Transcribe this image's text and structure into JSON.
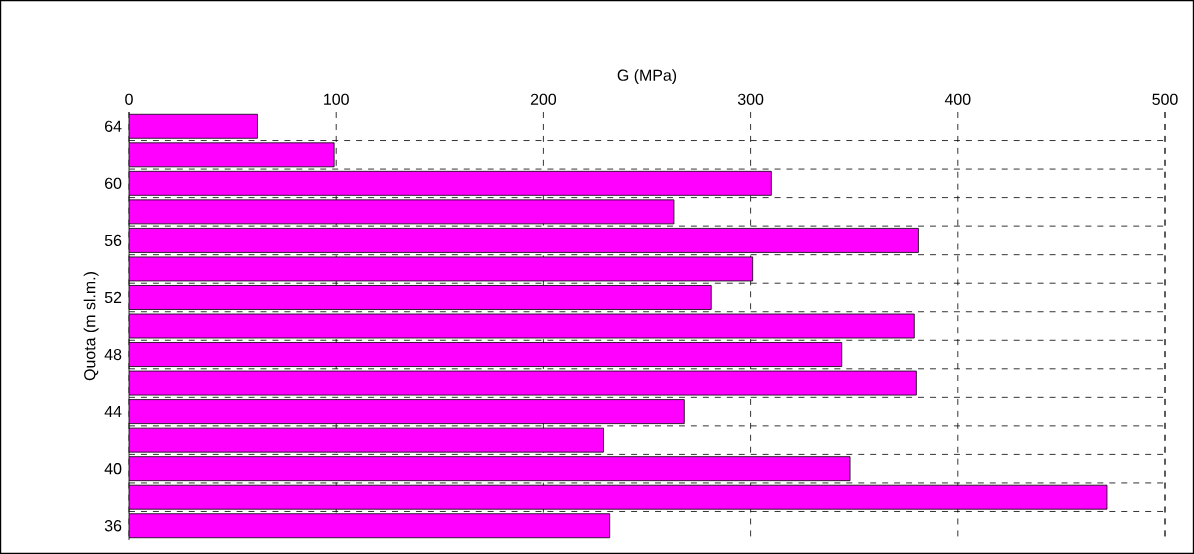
{
  "chart_data": {
    "type": "bar",
    "orientation": "horizontal",
    "xlabel": "G (MPa)",
    "ylabel": "Quota (m sl.m.)",
    "categories": [
      "64",
      null,
      "60",
      null,
      "56",
      null,
      "52",
      null,
      "48",
      null,
      "44",
      null,
      "40",
      null,
      "36"
    ],
    "values": [
      62,
      99,
      310,
      263,
      381,
      301,
      281,
      379,
      344,
      380,
      268,
      229,
      348,
      472,
      232
    ],
    "color": "#ff00ff",
    "xlim": [
      0,
      500
    ],
    "xticks": [
      0,
      100,
      200,
      300,
      400,
      500
    ],
    "grid": true
  }
}
